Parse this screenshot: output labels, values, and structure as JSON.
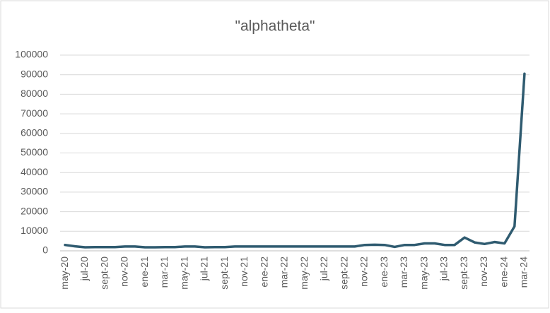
{
  "chart_data": {
    "type": "line",
    "title": "\"alphatheta\"",
    "categories": [
      "may-20",
      null,
      "jul-20",
      null,
      "sept-20",
      null,
      "nov-20",
      null,
      "ene-21",
      null,
      "mar-21",
      null,
      "may-21",
      null,
      "jul-21",
      null,
      "sept-21",
      null,
      "nov-21",
      null,
      "ene-22",
      null,
      "mar-22",
      null,
      "may-22",
      null,
      "jul-22",
      null,
      "sept-22",
      null,
      "nov-22",
      null,
      "ene-23",
      null,
      "mar-23",
      null,
      "may-23",
      null,
      "jul-23",
      null,
      "sept-23",
      null,
      "nov-23",
      null,
      "ene-24",
      null,
      "mar-24"
    ],
    "values": [
      3000,
      2300,
      1800,
      1900,
      1900,
      1900,
      2200,
      2200,
      1800,
      1800,
      1900,
      1900,
      2200,
      2200,
      1800,
      1900,
      1900,
      2200,
      2200,
      2200,
      2200,
      2200,
      2200,
      2200,
      2200,
      2200,
      2200,
      2200,
      2200,
      2200,
      3000,
      3100,
      3000,
      2000,
      3000,
      3000,
      3800,
      3800,
      3000,
      3000,
      6800,
      4300,
      3500,
      4500,
      3800,
      12500,
      90500
    ],
    "color": "#2f5b70",
    "ylim": [
      0,
      100000
    ],
    "yticks": [
      0,
      10000,
      20000,
      30000,
      40000,
      50000,
      60000,
      70000,
      80000,
      90000,
      100000
    ],
    "grid": true
  }
}
